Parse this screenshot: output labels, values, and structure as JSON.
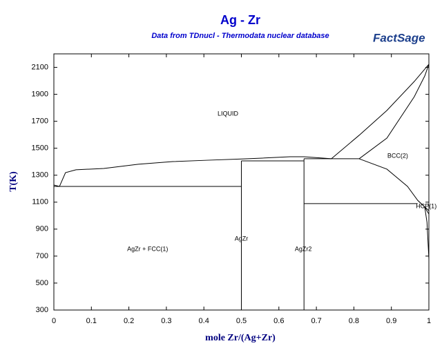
{
  "chart_data": {
    "type": "line",
    "title": "Ag - Zr",
    "subtitle": "Data from TDnucl - Thermodata nuclear database",
    "logo": "FactSage",
    "xlabel": "mole Zr/(Ag+Zr)",
    "ylabel": "T(K)",
    "xlim": [
      0,
      1
    ],
    "xticks": [
      0,
      0.1,
      0.2,
      0.3,
      0.4,
      0.5,
      0.6,
      0.7,
      0.8,
      0.9,
      1
    ],
    "ylim": [
      300,
      2200
    ],
    "yticks": [
      300,
      500,
      700,
      900,
      1100,
      1300,
      1500,
      1700,
      1900,
      2100
    ],
    "series": [
      {
        "color": "#000000",
        "x": [
          0,
          0.015,
          0.031,
          0.059,
          0.133,
          0.225,
          0.317,
          0.409,
          0.5,
          0.556,
          0.63,
          0.667,
          0.74,
          0.814,
          0.888,
          0.961,
          1
        ],
        "values": [
          1227,
          1217,
          1319,
          1340,
          1350,
          1381,
          1401,
          1411,
          1420,
          1427,
          1437,
          1437,
          1422,
          1596,
          1780,
          1995,
          2123
        ]
      },
      {
        "color": "#000000",
        "x": [
          0.814,
          0.888,
          0.961,
          0.989,
          1
        ],
        "values": [
          1422,
          1575,
          1882,
          2036,
          2123
        ]
      },
      {
        "color": "#000000",
        "x": [
          0.814,
          0.888,
          0.943,
          0.97,
          1
        ],
        "values": [
          1422,
          1345,
          1217,
          1114,
          1037
        ]
      },
      {
        "color": "#000000",
        "x": [
          0,
          0.5
        ],
        "values": [
          1217,
          1217
        ]
      },
      {
        "color": "#000000",
        "x": [
          0.5,
          0.5
        ],
        "values": [
          300,
          1406
        ]
      },
      {
        "color": "#000000",
        "x": [
          0.5,
          0.667
        ],
        "values": [
          1406,
          1406
        ]
      },
      {
        "color": "#000000",
        "x": [
          0.667,
          0.667
        ],
        "values": [
          300,
          1422
        ]
      },
      {
        "color": "#000000",
        "x": [
          0.667,
          0.814
        ],
        "values": [
          1422,
          1422
        ]
      },
      {
        "color": "#000000",
        "x": [
          0.667,
          0.97
        ],
        "values": [
          1089,
          1089
        ]
      },
      {
        "color": "#000000",
        "x": [
          0.97,
          0.989,
          1
        ],
        "values": [
          1114,
          1063,
          1012
        ]
      },
      {
        "color": "#000000",
        "x": [
          0.989,
          0.995,
          1
        ],
        "values": [
          1063,
          950,
          679
        ]
      }
    ],
    "annotations": [
      {
        "text": "LIQUID",
        "x": 0.464,
        "y": 1754
      },
      {
        "text": "BCC(2)",
        "x": 0.917,
        "y": 1442
      },
      {
        "text": "HCP(1)",
        "x": 0.993,
        "y": 1068
      },
      {
        "text": "AgZr",
        "x": 0.5,
        "y": 827
      },
      {
        "text": "AgZr2",
        "x": 0.665,
        "y": 750
      },
      {
        "text": "AgZr + FCC(1)",
        "x": 0.25,
        "y": 750
      }
    ]
  }
}
